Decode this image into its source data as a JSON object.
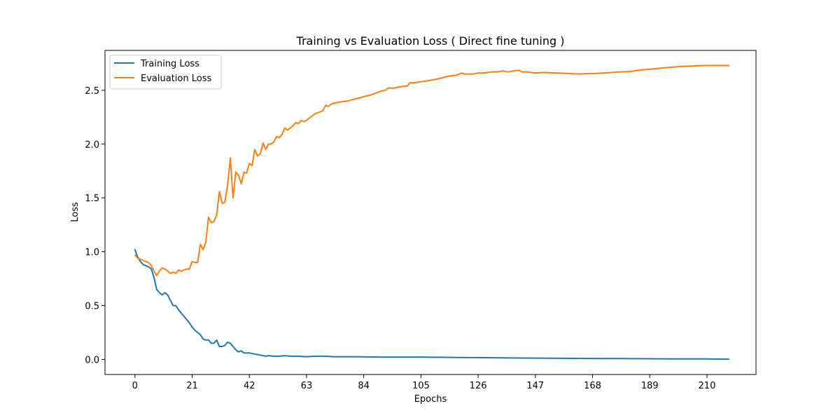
{
  "chart_data": {
    "type": "line",
    "title": "Training vs Evaluation Loss ( Direct fine tuning )",
    "xlabel": "Epochs",
    "ylabel": "Loss",
    "xlim": [
      -11,
      228
    ],
    "ylim": [
      -0.14,
      2.87
    ],
    "xticks": [
      "0",
      "21",
      "42",
      "63",
      "84",
      "105",
      "126",
      "147",
      "168",
      "189",
      "210"
    ],
    "yticks": [
      "0.0",
      "0.5",
      "1.0",
      "1.5",
      "2.0",
      "2.5"
    ],
    "grid": false,
    "legend_position": "upper left",
    "series": [
      {
        "name": "Training Loss",
        "color": "#1f77b4",
        "points": [
          [
            0,
            1.02
          ],
          [
            1,
            0.95
          ],
          [
            2,
            0.91
          ],
          [
            3,
            0.88
          ],
          [
            4,
            0.87
          ],
          [
            5,
            0.86
          ],
          [
            6,
            0.84
          ],
          [
            7,
            0.76
          ],
          [
            8,
            0.65
          ],
          [
            9,
            0.62
          ],
          [
            10,
            0.6
          ],
          [
            11,
            0.62
          ],
          [
            12,
            0.6
          ],
          [
            13,
            0.55
          ],
          [
            14,
            0.5
          ],
          [
            15,
            0.5
          ],
          [
            16,
            0.46
          ],
          [
            17,
            0.43
          ],
          [
            18,
            0.4
          ],
          [
            19,
            0.37
          ],
          [
            20,
            0.34
          ],
          [
            21,
            0.3
          ],
          [
            22,
            0.27
          ],
          [
            23,
            0.25
          ],
          [
            24,
            0.23
          ],
          [
            25,
            0.19
          ],
          [
            26,
            0.18
          ],
          [
            27,
            0.18
          ],
          [
            28,
            0.15
          ],
          [
            29,
            0.15
          ],
          [
            30,
            0.18
          ],
          [
            31,
            0.12
          ],
          [
            32,
            0.12
          ],
          [
            33,
            0.13
          ],
          [
            34,
            0.16
          ],
          [
            35,
            0.15
          ],
          [
            36,
            0.12
          ],
          [
            37,
            0.09
          ],
          [
            38,
            0.07
          ],
          [
            39,
            0.08
          ],
          [
            40,
            0.06
          ],
          [
            42,
            0.06
          ],
          [
            44,
            0.05
          ],
          [
            46,
            0.04
          ],
          [
            48,
            0.03
          ],
          [
            49,
            0.035
          ],
          [
            51,
            0.03
          ],
          [
            53,
            0.03
          ],
          [
            55,
            0.035
          ],
          [
            57,
            0.03
          ],
          [
            60,
            0.03
          ],
          [
            63,
            0.025
          ],
          [
            66,
            0.03
          ],
          [
            70,
            0.03
          ],
          [
            73,
            0.025
          ],
          [
            80,
            0.025
          ],
          [
            90,
            0.022
          ],
          [
            100,
            0.022
          ],
          [
            105,
            0.022
          ],
          [
            110,
            0.02
          ],
          [
            120,
            0.018
          ],
          [
            126,
            0.017
          ],
          [
            135,
            0.015
          ],
          [
            147,
            0.012
          ],
          [
            158,
            0.01
          ],
          [
            168,
            0.009
          ],
          [
            175,
            0.008
          ],
          [
            189,
            0.006
          ],
          [
            200,
            0.005
          ],
          [
            210,
            0.004
          ],
          [
            218,
            0.003
          ]
        ]
      },
      {
        "name": "Evaluation Loss",
        "color": "#ff7f0e",
        "points": [
          [
            0,
            0.97
          ],
          [
            1,
            0.94
          ],
          [
            2,
            0.93
          ],
          [
            3,
            0.92
          ],
          [
            4,
            0.91
          ],
          [
            5,
            0.9
          ],
          [
            6,
            0.87
          ],
          [
            7,
            0.82
          ],
          [
            8,
            0.78
          ],
          [
            9,
            0.82
          ],
          [
            10,
            0.85
          ],
          [
            11,
            0.84
          ],
          [
            12,
            0.82
          ],
          [
            13,
            0.8
          ],
          [
            14,
            0.81
          ],
          [
            15,
            0.8
          ],
          [
            16,
            0.83
          ],
          [
            17,
            0.82
          ],
          [
            18,
            0.83
          ],
          [
            19,
            0.84
          ],
          [
            20,
            0.84
          ],
          [
            21,
            0.91
          ],
          [
            22,
            0.9
          ],
          [
            23,
            0.9
          ],
          [
            24,
            1.07
          ],
          [
            25,
            1.02
          ],
          [
            26,
            1.09
          ],
          [
            27,
            1.32
          ],
          [
            28,
            1.27
          ],
          [
            29,
            1.28
          ],
          [
            30,
            1.34
          ],
          [
            31,
            1.56
          ],
          [
            32,
            1.45
          ],
          [
            33,
            1.46
          ],
          [
            34,
            1.62
          ],
          [
            35,
            1.87
          ],
          [
            36,
            1.5
          ],
          [
            37,
            1.74
          ],
          [
            38,
            1.71
          ],
          [
            39,
            1.63
          ],
          [
            40,
            1.74
          ],
          [
            41,
            1.73
          ],
          [
            42,
            1.82
          ],
          [
            43,
            1.8
          ],
          [
            44,
            1.95
          ],
          [
            45,
            1.89
          ],
          [
            46,
            1.91
          ],
          [
            47,
            2.01
          ],
          [
            48,
            1.95
          ],
          [
            49,
            2.0
          ],
          [
            50,
            2.0
          ],
          [
            51,
            2.02
          ],
          [
            52,
            2.07
          ],
          [
            53,
            2.06
          ],
          [
            54,
            2.09
          ],
          [
            55,
            2.15
          ],
          [
            56,
            2.13
          ],
          [
            57,
            2.15
          ],
          [
            58,
            2.17
          ],
          [
            59,
            2.2
          ],
          [
            60,
            2.19
          ],
          [
            61,
            2.22
          ],
          [
            62,
            2.21
          ],
          [
            63,
            2.22
          ],
          [
            64,
            2.24
          ],
          [
            65,
            2.26
          ],
          [
            66,
            2.28
          ],
          [
            67,
            2.29
          ],
          [
            68,
            2.3
          ],
          [
            69,
            2.31
          ],
          [
            70,
            2.36
          ],
          [
            71,
            2.35
          ],
          [
            72,
            2.37
          ],
          [
            73,
            2.38
          ],
          [
            75,
            2.39
          ],
          [
            78,
            2.4
          ],
          [
            81,
            2.42
          ],
          [
            84,
            2.44
          ],
          [
            87,
            2.46
          ],
          [
            90,
            2.49
          ],
          [
            92,
            2.5
          ],
          [
            93,
            2.52
          ],
          [
            95,
            2.52
          ],
          [
            97,
            2.53
          ],
          [
            100,
            2.54
          ],
          [
            101,
            2.57
          ],
          [
            103,
            2.57
          ],
          [
            105,
            2.58
          ],
          [
            108,
            2.59
          ],
          [
            112,
            2.61
          ],
          [
            115,
            2.63
          ],
          [
            118,
            2.64
          ],
          [
            120,
            2.66
          ],
          [
            121,
            2.65
          ],
          [
            124,
            2.65
          ],
          [
            126,
            2.66
          ],
          [
            128,
            2.66
          ],
          [
            131,
            2.67
          ],
          [
            133,
            2.67
          ],
          [
            135,
            2.68
          ],
          [
            137,
            2.67
          ],
          [
            139,
            2.68
          ],
          [
            141,
            2.685
          ],
          [
            142,
            2.67
          ],
          [
            144,
            2.67
          ],
          [
            147,
            2.66
          ],
          [
            150,
            2.665
          ],
          [
            155,
            2.66
          ],
          [
            160,
            2.655
          ],
          [
            163,
            2.65
          ],
          [
            166,
            2.655
          ],
          [
            168,
            2.655
          ],
          [
            172,
            2.66
          ],
          [
            175,
            2.665
          ],
          [
            178,
            2.67
          ],
          [
            182,
            2.675
          ],
          [
            186,
            2.69
          ],
          [
            189,
            2.695
          ],
          [
            195,
            2.71
          ],
          [
            200,
            2.72
          ],
          [
            205,
            2.725
          ],
          [
            210,
            2.73
          ],
          [
            215,
            2.73
          ],
          [
            218,
            2.73
          ]
        ]
      }
    ]
  }
}
